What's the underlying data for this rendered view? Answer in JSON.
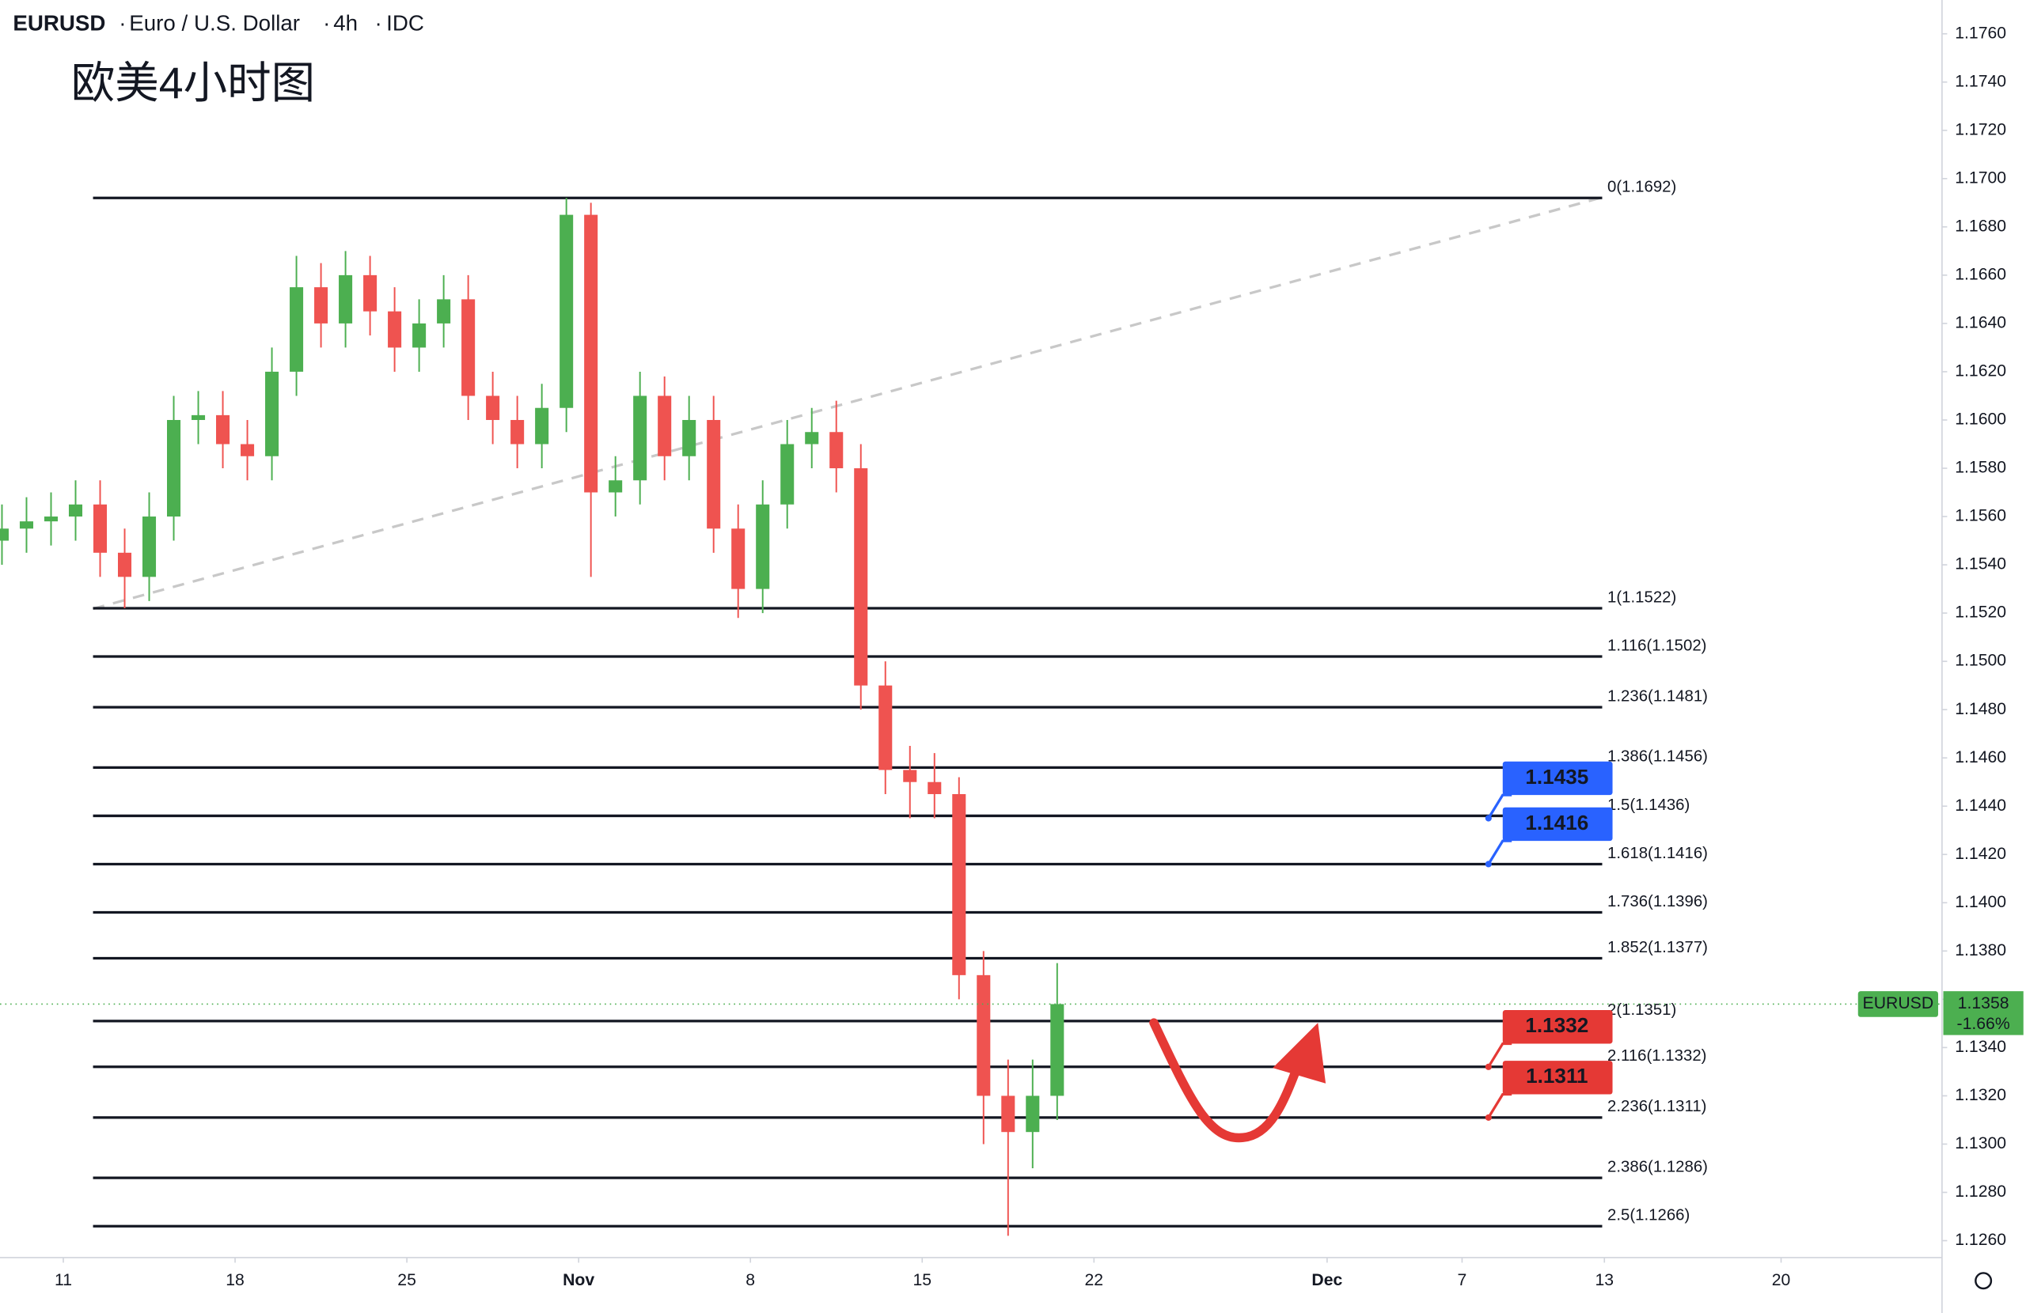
{
  "chart_data": {
    "type": "candlestick",
    "symbol": "EURUSD",
    "title": "Euro / U.S. Dollar",
    "interval": "4h",
    "source": "IDC",
    "annotation": "欧美4小时图",
    "up_color": "#4caf50",
    "down_color": "#ef5350",
    "xlim": [
      7.42,
      86.4
    ],
    "ylim": [
      1.1253,
      1.1774
    ],
    "xticks": [
      {
        "value": 10,
        "label": "11"
      },
      {
        "value": 17,
        "label": "18"
      },
      {
        "value": 24,
        "label": "25"
      },
      {
        "value": 31,
        "label": "Nov"
      },
      {
        "value": 38,
        "label": "8"
      },
      {
        "value": 45,
        "label": "15"
      },
      {
        "value": 52,
        "label": "22"
      },
      {
        "value": 61.5,
        "label": "Dec"
      },
      {
        "value": 67,
        "label": "7"
      },
      {
        "value": 72.8,
        "label": "13"
      },
      {
        "value": 80,
        "label": "20"
      }
    ],
    "yticks": [
      {
        "value": 1.176,
        "label": "1.1760"
      },
      {
        "value": 1.174,
        "label": "1.1740"
      },
      {
        "value": 1.172,
        "label": "1.1720"
      },
      {
        "value": 1.17,
        "label": "1.1700"
      },
      {
        "value": 1.168,
        "label": "1.1680"
      },
      {
        "value": 1.166,
        "label": "1.1660"
      },
      {
        "value": 1.164,
        "label": "1.1640"
      },
      {
        "value": 1.162,
        "label": "1.1620"
      },
      {
        "value": 1.16,
        "label": "1.1600"
      },
      {
        "value": 1.158,
        "label": "1.1580"
      },
      {
        "value": 1.156,
        "label": "1.1560"
      },
      {
        "value": 1.154,
        "label": "1.1540"
      },
      {
        "value": 1.152,
        "label": "1.1520"
      },
      {
        "value": 1.15,
        "label": "1.1500"
      },
      {
        "value": 1.148,
        "label": "1.1480"
      },
      {
        "value": 1.146,
        "label": "1.1460"
      },
      {
        "value": 1.144,
        "label": "1.1440"
      },
      {
        "value": 1.142,
        "label": "1.1420"
      },
      {
        "value": 1.14,
        "label": "1.1400"
      },
      {
        "value": 1.138,
        "label": "1.1380"
      },
      {
        "value": 1.136,
        "label": "1.1360"
      },
      {
        "value": 1.134,
        "label": "1.1340"
      },
      {
        "value": 1.132,
        "label": "1.1320"
      },
      {
        "value": 1.13,
        "label": "1.1300"
      },
      {
        "value": 1.128,
        "label": "1.1280"
      },
      {
        "value": 1.126,
        "label": "1.1260"
      }
    ],
    "x": [
      7.5,
      8.5,
      9.5,
      10.5,
      11.5,
      12.5,
      13.5,
      14.5,
      15.5,
      16.5,
      17.5,
      18.5,
      19.5,
      20.5,
      21.5,
      22.5,
      23.5,
      24.5,
      25.5,
      26.5,
      27.5,
      28.5,
      29.5,
      30.5,
      31.5,
      32.5,
      33.5,
      34.5,
      35.5,
      36.5,
      37.5,
      38.5,
      39.5,
      40.5,
      41.5,
      42.5,
      43.5,
      44.5,
      45.5,
      46.5,
      47.5,
      48.5,
      49.5,
      50.5
    ],
    "open": [
      1.155,
      1.1555,
      1.1558,
      1.156,
      1.1565,
      1.1545,
      1.1535,
      1.156,
      1.16,
      1.1602,
      1.159,
      1.1585,
      1.162,
      1.1655,
      1.164,
      1.166,
      1.1645,
      1.163,
      1.164,
      1.165,
      1.161,
      1.16,
      1.159,
      1.1605,
      1.1685,
      1.157,
      1.1575,
      1.161,
      1.1585,
      1.16,
      1.1555,
      1.153,
      1.1565,
      1.159,
      1.1595,
      1.158,
      1.149,
      1.1455,
      1.145,
      1.1445,
      1.137,
      1.132,
      1.1305,
      1.132
    ],
    "high": [
      1.1565,
      1.1568,
      1.157,
      1.1575,
      1.1575,
      1.1555,
      1.157,
      1.161,
      1.1612,
      1.1612,
      1.16,
      1.163,
      1.1668,
      1.1665,
      1.167,
      1.1668,
      1.1655,
      1.165,
      1.166,
      1.166,
      1.162,
      1.161,
      1.1615,
      1.1692,
      1.169,
      1.1585,
      1.162,
      1.1618,
      1.161,
      1.161,
      1.1565,
      1.1575,
      1.16,
      1.1605,
      1.1608,
      1.159,
      1.15,
      1.1465,
      1.1462,
      1.1452,
      1.138,
      1.1335,
      1.1335,
      1.1375
    ],
    "low": [
      1.154,
      1.1545,
      1.1548,
      1.155,
      1.1535,
      1.1522,
      1.1525,
      1.155,
      1.159,
      1.158,
      1.1575,
      1.1575,
      1.161,
      1.163,
      1.163,
      1.1635,
      1.162,
      1.162,
      1.163,
      1.16,
      1.159,
      1.158,
      1.158,
      1.1595,
      1.1535,
      1.156,
      1.1565,
      1.1575,
      1.1575,
      1.1545,
      1.1518,
      1.152,
      1.1555,
      1.158,
      1.157,
      1.148,
      1.1445,
      1.1435,
      1.1435,
      1.136,
      1.13,
      1.1262,
      1.129,
      1.131
    ],
    "close": [
      1.1555,
      1.1558,
      1.156,
      1.1565,
      1.1545,
      1.1535,
      1.156,
      1.16,
      1.1602,
      1.159,
      1.1585,
      1.162,
      1.1655,
      1.164,
      1.166,
      1.1645,
      1.163,
      1.164,
      1.165,
      1.161,
      1.16,
      1.159,
      1.1605,
      1.1685,
      1.157,
      1.1575,
      1.161,
      1.1585,
      1.16,
      1.1555,
      1.153,
      1.1565,
      1.159,
      1.1595,
      1.158,
      1.149,
      1.1455,
      1.145,
      1.1445,
      1.137,
      1.132,
      1.1305,
      1.132,
      1.1358
    ],
    "fib_levels": [
      {
        "label": "0(1.1692)",
        "value": 1.1692
      },
      {
        "label": "1(1.1522)",
        "value": 1.1522
      },
      {
        "label": "1.116(1.1502)",
        "value": 1.1502
      },
      {
        "label": "1.236(1.1481)",
        "value": 1.1481
      },
      {
        "label": "1.386(1.1456)",
        "value": 1.1456
      },
      {
        "label": "1.5(1.1436)",
        "value": 1.1436
      },
      {
        "label": "1.618(1.1416)",
        "value": 1.1416
      },
      {
        "label": "1.736(1.1396)",
        "value": 1.1396
      },
      {
        "label": "1.852(1.1377)",
        "value": 1.1377
      },
      {
        "label": "2(1.1351)",
        "value": 1.1351
      },
      {
        "label": "2.116(1.1332)",
        "value": 1.1332
      },
      {
        "label": "2.236(1.1311)",
        "value": 1.1311
      },
      {
        "label": "2.386(1.1286)",
        "value": 1.1286
      },
      {
        "label": "2.5(1.1266)",
        "value": 1.1266
      }
    ],
    "price_tags": [
      {
        "value": 1.1435,
        "color": "#2962ff"
      },
      {
        "value": 1.1416,
        "color": "#2962ff"
      },
      {
        "value": 1.1332,
        "color": "#e53935"
      },
      {
        "value": 1.1311,
        "color": "#e53935"
      }
    ],
    "last_price": {
      "symbol": "EURUSD",
      "value": 1.1358,
      "change": "-1.66%",
      "color": "#4caf50"
    }
  }
}
